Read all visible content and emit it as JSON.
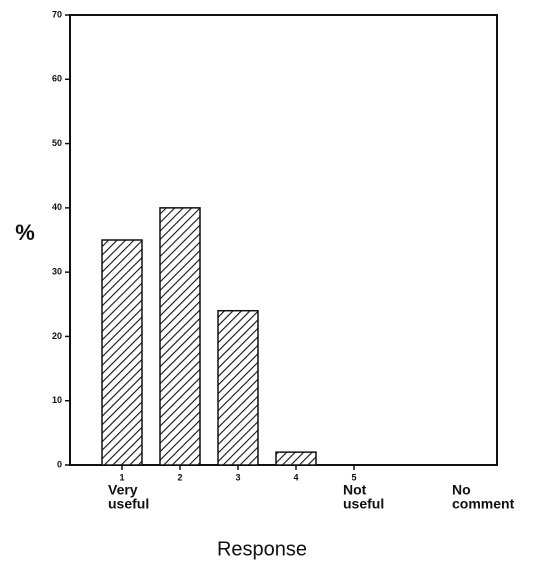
{
  "chart_data": {
    "type": "bar",
    "categories": [
      "1",
      "2",
      "3",
      "4",
      "5"
    ],
    "values": [
      35,
      40,
      24,
      2,
      0
    ],
    "color": "#111111",
    "ylim": [
      0,
      70
    ],
    "yticks": [
      0,
      10,
      20,
      30,
      40,
      50,
      60,
      70
    ],
    "y_label": "%",
    "x_label": "Response",
    "annotations": [
      [
        "Very",
        "useful"
      ],
      [
        "Not",
        "useful"
      ],
      [
        "No",
        "comment"
      ]
    ]
  }
}
